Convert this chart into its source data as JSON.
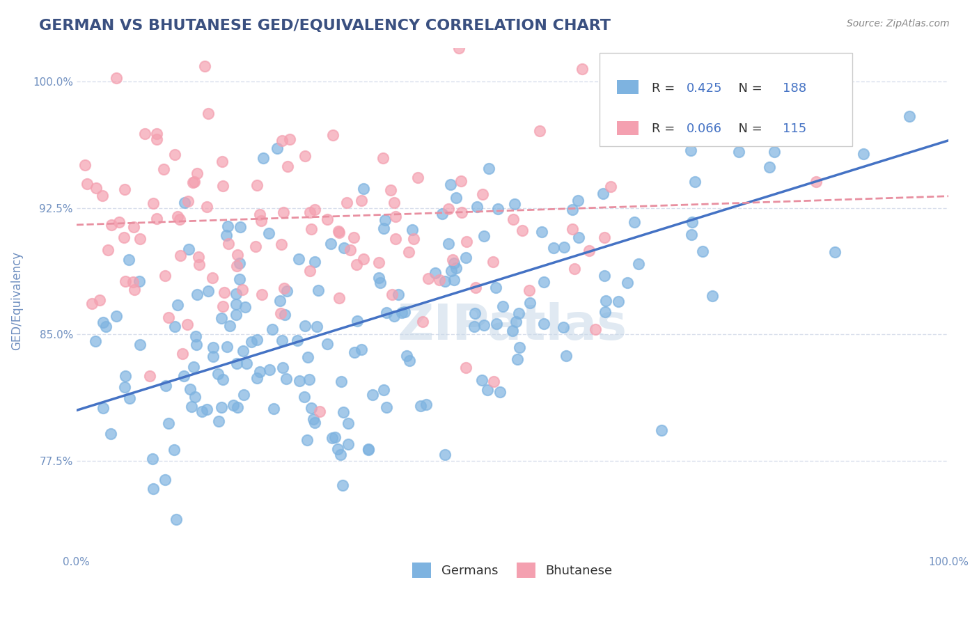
{
  "title": "GERMAN VS BHUTANESE GED/EQUIVALENCY CORRELATION CHART",
  "source": "Source: ZipAtlas.com",
  "xlabel": "",
  "ylabel": "GED/Equivalency",
  "xlim": [
    0.0,
    1.0
  ],
  "ylim": [
    0.72,
    1.02
  ],
  "yticks": [
    0.775,
    0.85,
    0.925,
    1.0
  ],
  "ytick_labels": [
    "77.5%",
    "85.0%",
    "92.5%",
    "100.0%"
  ],
  "xticks": [
    0.0,
    0.1,
    0.2,
    0.3,
    0.4,
    0.5,
    0.6,
    0.7,
    0.8,
    0.9,
    1.0
  ],
  "xtick_labels": [
    "0.0%",
    "",
    "",
    "",
    "",
    "",
    "",
    "",
    "",
    "",
    "100.0%"
  ],
  "german_R": 0.425,
  "german_N": 188,
  "bhutanese_R": 0.066,
  "bhutanese_N": 115,
  "german_color": "#7eb3e0",
  "bhutanese_color": "#f4a0b0",
  "trend_german_color": "#4472c4",
  "trend_bhutanese_color": "#e88fa0",
  "german_trend_x0": 0.0,
  "german_trend_y0": 0.805,
  "german_trend_x1": 1.0,
  "german_trend_y1": 0.965,
  "bhutanese_trend_x0": 0.0,
  "bhutanese_trend_y0": 0.915,
  "bhutanese_trend_x1": 1.0,
  "bhutanese_trend_y1": 0.932,
  "watermark": "ZIPatlas",
  "background_color": "#ffffff",
  "grid_color": "#d0d8e8",
  "title_color": "#3a5080",
  "axis_label_color": "#5060a0",
  "tick_color": "#7090c0",
  "figsize": [
    14.06,
    8.92
  ],
  "dpi": 100,
  "seed": 42
}
